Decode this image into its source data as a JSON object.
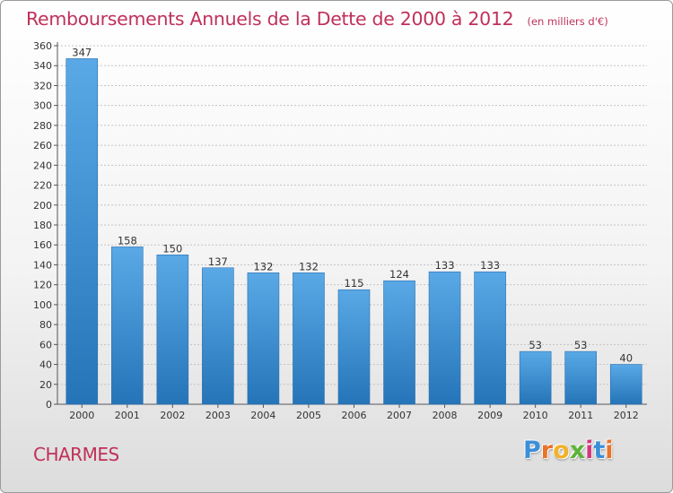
{
  "chart_data": {
    "type": "bar",
    "title": "Remboursements Annuels de la Dette de 2000 à 2012",
    "unit": "(en milliers d'€)",
    "categories": [
      "2000",
      "2001",
      "2002",
      "2003",
      "2004",
      "2005",
      "2006",
      "2007",
      "2008",
      "2009",
      "2010",
      "2011",
      "2012"
    ],
    "values": [
      347,
      158,
      150,
      137,
      132,
      132,
      115,
      124,
      133,
      133,
      53,
      53,
      40
    ],
    "ylim": [
      0,
      360
    ],
    "yticks": [
      0,
      20,
      40,
      60,
      80,
      100,
      120,
      140,
      160,
      180,
      200,
      220,
      240,
      260,
      280,
      300,
      320,
      340,
      360
    ],
    "grid": true,
    "bar_color_top": "#5aa9e6",
    "bar_color_bottom": "#2574b8"
  },
  "commune": "CHARMES",
  "logo": {
    "letters": [
      {
        "char": "P",
        "color": "#3b8fd8"
      },
      {
        "char": "r",
        "color": "#e8732a"
      },
      {
        "char": "o",
        "color": "#f0b22a"
      },
      {
        "char": "x",
        "color": "#5db33a"
      },
      {
        "char": "i",
        "color": "#d03a7a"
      },
      {
        "char": "t",
        "color": "#3b8fd8"
      },
      {
        "char": "i",
        "color": "#e8732a"
      }
    ]
  }
}
